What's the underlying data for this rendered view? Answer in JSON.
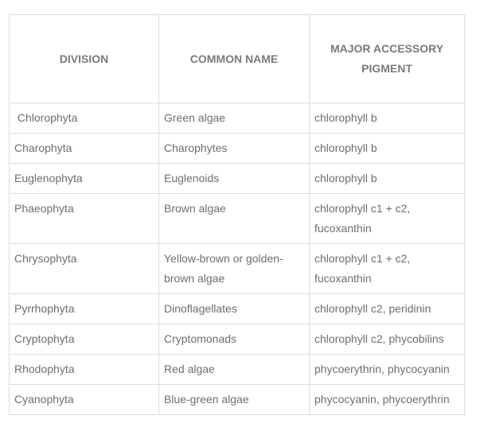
{
  "table": {
    "headers": [
      "DIVISION",
      "COMMON NAME",
      "MAJOR ACCESSORY PIGMENT"
    ],
    "rows": [
      {
        "division": " Chlorophyta",
        "common": "Green algae",
        "pigment": "chlorophyll b"
      },
      {
        "division": "Charophyta",
        "common": "Charophytes",
        "pigment": "chlorophyll b"
      },
      {
        "division": "Euglenophyta",
        "common": "Euglenoids",
        "pigment": "chlorophyll b"
      },
      {
        "division": "Phaeophyta",
        "common": "Brown algae",
        "pigment": "chlorophyll c1 + c2, fucoxanthin"
      },
      {
        "division": "Chrysophyta",
        "common": "Yellow-brown or golden-brown algae",
        "pigment": "chlorophyll c1 + c2, fucoxanthin"
      },
      {
        "division": "Pyrrhophyta",
        "common": "Dinoflagellates",
        "pigment": "chlorophyll c2, peridinin"
      },
      {
        "division": "Cryptophyta",
        "common": "Cryptomonads",
        "pigment": "chlorophyll c2, phycobilins"
      },
      {
        "division": "Rhodophyta",
        "common": "Red algae",
        "pigment": "phycoerythrin, phycocyanin"
      },
      {
        "division": "Cyanophyta",
        "common": "Blue-green algae",
        "pigment": "phycocyanin, phycoerythrin"
      }
    ]
  }
}
